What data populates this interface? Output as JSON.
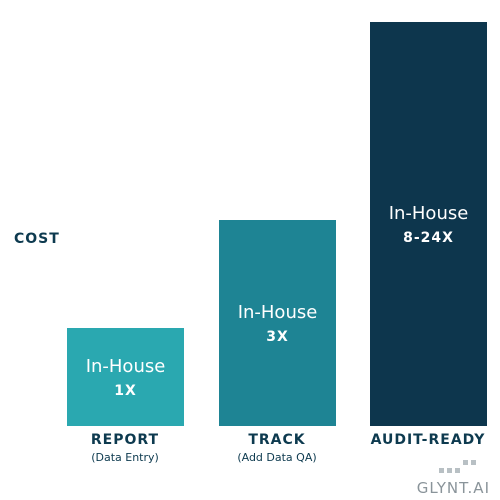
{
  "axis_label": "COST",
  "bars": [
    {
      "inner_label": "In-House",
      "multiplier": "1X",
      "category": "REPORT",
      "subcategory": "(Data Entry)"
    },
    {
      "inner_label": "In-House",
      "multiplier": "3X",
      "category": "TRACK",
      "subcategory": "(Add Data QA)"
    },
    {
      "inner_label": "In-House",
      "multiplier": "8-24X",
      "category": "AUDIT-READY",
      "subcategory": ""
    }
  ],
  "logo": "GLYNT.AI"
}
